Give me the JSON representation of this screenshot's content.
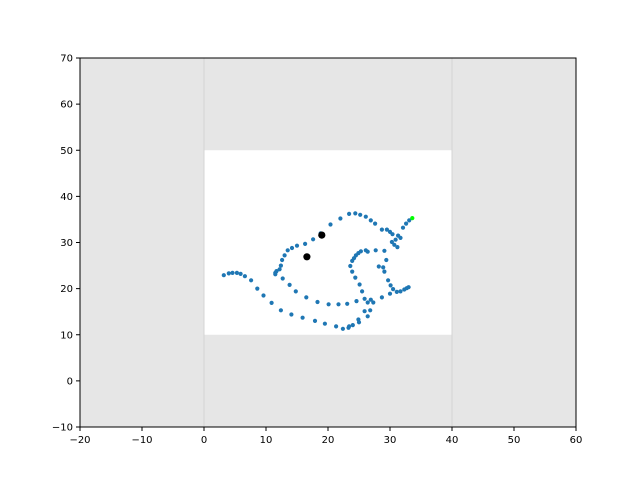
{
  "chart_data": {
    "type": "scatter",
    "title": "",
    "xlabel": "",
    "ylabel": "",
    "xlim": [
      -20,
      60
    ],
    "ylim": [
      -10,
      70
    ],
    "xticks": [
      -20,
      -10,
      0,
      10,
      20,
      30,
      40,
      50,
      60
    ],
    "yticks": [
      -10,
      0,
      10,
      20,
      30,
      40,
      50,
      60,
      70
    ],
    "grid": false,
    "legend": "none",
    "background_color": "#e6e6e6",
    "inner_region": {
      "x": [
        0,
        40
      ],
      "y": [
        10,
        50
      ],
      "color": "#ffffff"
    },
    "divider_lines_x": [
      0,
      40
    ],
    "series": [
      {
        "color": "#1f77b4",
        "marker": "small-dot",
        "points": [
          [
            3.2,
            22.9
          ],
          [
            4.0,
            23.3
          ],
          [
            4.6,
            23.4
          ],
          [
            5.3,
            23.4
          ],
          [
            5.9,
            23.2
          ],
          [
            6.6,
            22.7
          ],
          [
            7.6,
            21.8
          ],
          [
            8.6,
            20.0
          ],
          [
            9.6,
            18.5
          ],
          [
            10.9,
            16.9
          ],
          [
            12.4,
            15.3
          ],
          [
            14.1,
            14.4
          ],
          [
            15.9,
            13.7
          ],
          [
            17.9,
            13.0
          ],
          [
            19.5,
            12.4
          ],
          [
            21.3,
            11.8
          ],
          [
            22.4,
            11.3
          ],
          [
            23.3,
            11.5
          ],
          [
            24.0,
            12.1
          ],
          [
            24.9,
            13.3
          ],
          [
            25.9,
            15.1
          ],
          [
            26.4,
            17.0
          ],
          [
            26.9,
            17.6
          ],
          [
            25.9,
            17.8
          ],
          [
            25.5,
            19.4
          ],
          [
            25.1,
            20.9
          ],
          [
            24.4,
            22.4
          ],
          [
            23.9,
            23.7
          ],
          [
            23.6,
            24.9
          ],
          [
            23.9,
            26.0
          ],
          [
            24.2,
            26.6
          ],
          [
            24.5,
            27.2
          ],
          [
            24.9,
            27.7
          ],
          [
            25.3,
            28.1
          ],
          [
            26.1,
            28.3
          ],
          [
            27.7,
            28.3
          ],
          [
            29.1,
            28.2
          ],
          [
            29.4,
            26.2
          ],
          [
            28.9,
            24.6
          ],
          [
            29.1,
            23.7
          ],
          [
            29.7,
            21.8
          ],
          [
            30.1,
            20.7
          ],
          [
            30.5,
            19.9
          ],
          [
            31.1,
            19.3
          ],
          [
            31.7,
            19.4
          ],
          [
            32.3,
            19.8
          ],
          [
            32.7,
            20.1
          ],
          [
            33.0,
            20.3
          ],
          [
            30.0,
            18.9
          ],
          [
            28.7,
            18.1
          ],
          [
            27.3,
            17.0
          ],
          [
            26.8,
            15.3
          ],
          [
            26.4,
            14.0
          ],
          [
            25.0,
            12.7
          ],
          [
            23.4,
            11.8
          ],
          [
            11.5,
            23.1
          ],
          [
            12.2,
            24.2
          ],
          [
            12.4,
            25.0
          ],
          [
            12.6,
            26.2
          ],
          [
            13.0,
            27.2
          ],
          [
            13.5,
            28.3
          ],
          [
            14.2,
            28.8
          ],
          [
            15.0,
            29.3
          ],
          [
            16.3,
            29.7
          ],
          [
            17.6,
            30.7
          ],
          [
            18.8,
            32.0
          ],
          [
            20.4,
            33.9
          ],
          [
            22.0,
            35.2
          ],
          [
            23.4,
            36.2
          ],
          [
            24.4,
            36.3
          ],
          [
            25.2,
            36.0
          ],
          [
            26.1,
            35.6
          ],
          [
            26.9,
            34.8
          ],
          [
            27.6,
            34.1
          ],
          [
            28.7,
            32.8
          ],
          [
            30.0,
            32.3
          ],
          [
            31.3,
            31.5
          ],
          [
            30.9,
            30.6
          ],
          [
            30.7,
            29.5
          ],
          [
            31.2,
            29.0
          ],
          [
            31.7,
            31.0
          ],
          [
            32.1,
            33.2
          ],
          [
            32.6,
            34.1
          ],
          [
            33.1,
            34.8
          ],
          [
            11.5,
            23.4
          ],
          [
            11.7,
            23.8
          ],
          [
            12.7,
            22.2
          ],
          [
            13.8,
            20.8
          ],
          [
            14.8,
            19.4
          ],
          [
            16.5,
            18.1
          ],
          [
            18.3,
            17.1
          ],
          [
            20.1,
            16.6
          ],
          [
            21.7,
            16.6
          ],
          [
            23.1,
            16.7
          ],
          [
            24.6,
            17.3
          ],
          [
            28.2,
            24.8
          ],
          [
            26.4,
            28.0
          ],
          [
            30.4,
            31.8
          ],
          [
            29.5,
            32.8
          ],
          [
            30.3,
            30.1
          ]
        ]
      },
      {
        "color": "#000000",
        "marker": "large-dot",
        "points": [
          [
            19.0,
            31.6
          ],
          [
            16.6,
            26.9
          ]
        ]
      },
      {
        "color": "#00ff00",
        "marker": "small-dot",
        "points": [
          [
            33.6,
            35.3
          ]
        ]
      }
    ]
  }
}
